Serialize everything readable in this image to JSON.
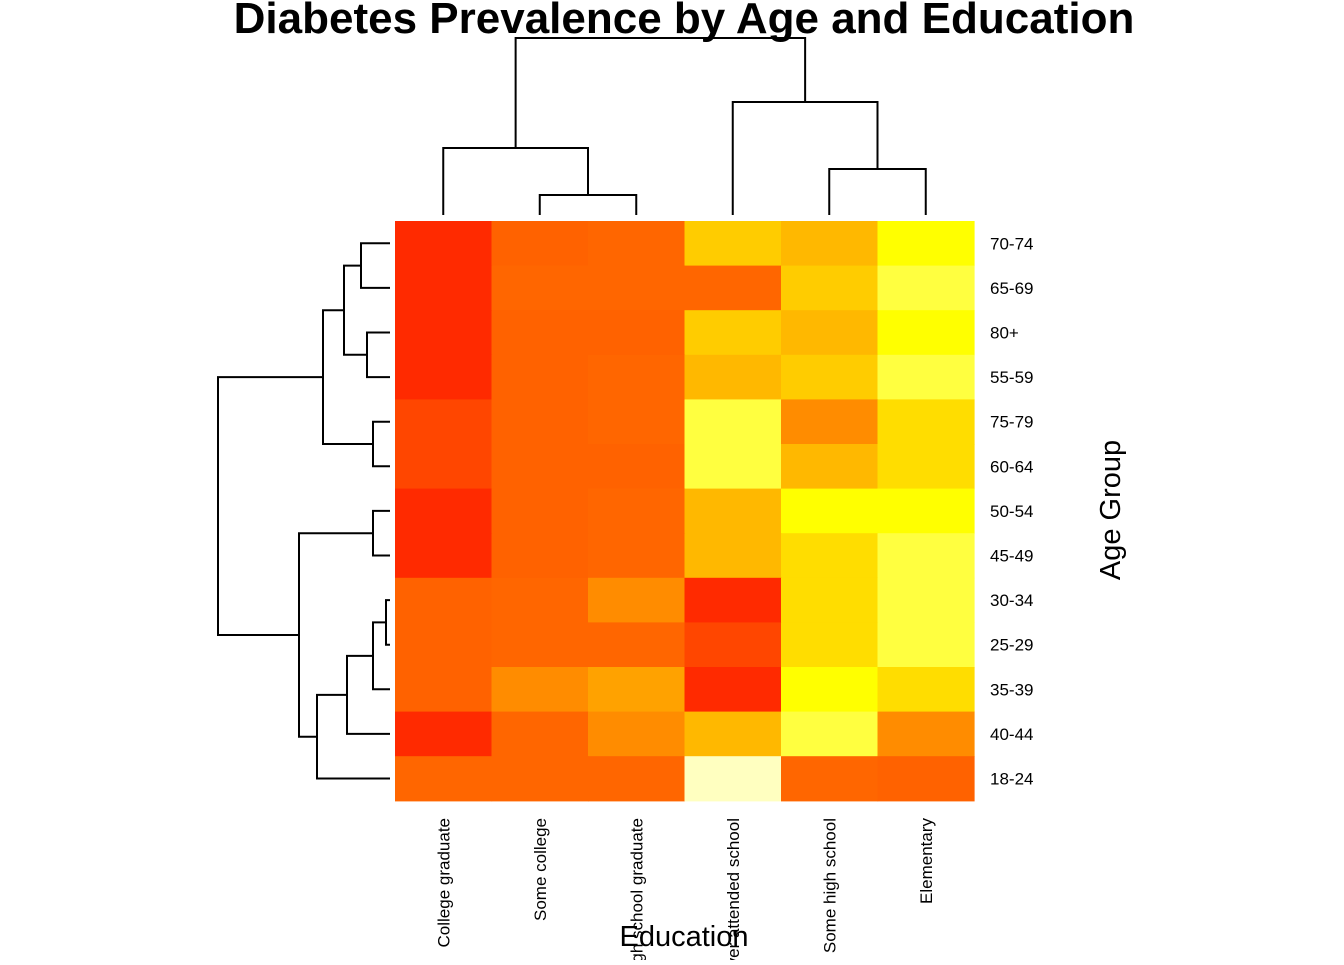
{
  "chart_data": {
    "type": "heatmap",
    "title": "Diabetes Prevalence by Age and Education",
    "xlabel": "Education",
    "ylabel": "Age Group",
    "columns": [
      "College graduate",
      "Some college",
      "High school graduate",
      "Never attended school",
      "Some high school",
      "Elementary"
    ],
    "rows": [
      "70-74",
      "65-69",
      "80+",
      "55-59",
      "75-79",
      "60-64",
      "50-54",
      "45-49",
      "30-34",
      "25-29",
      "35-39",
      "40-44",
      "18-24"
    ],
    "values": [
      [
        1,
        3,
        4,
        9,
        8,
        12
      ],
      [
        1,
        4,
        4,
        4,
        9,
        13
      ],
      [
        1,
        3,
        3,
        9,
        8,
        12
      ],
      [
        1,
        3,
        4,
        8,
        9,
        13
      ],
      [
        2,
        3,
        4,
        13,
        6,
        10
      ],
      [
        2,
        3,
        3,
        13,
        8,
        10
      ],
      [
        1,
        3,
        4,
        8,
        12,
        12
      ],
      [
        1,
        3,
        4,
        8,
        10,
        13
      ],
      [
        3,
        4,
        6,
        1,
        10,
        13
      ],
      [
        3,
        4,
        4,
        2,
        10,
        13
      ],
      [
        3,
        6,
        7,
        1,
        12,
        10
      ],
      [
        1,
        4,
        6,
        8,
        13,
        6
      ],
      [
        4,
        4,
        4,
        15,
        4,
        3
      ]
    ],
    "color_scale": {
      "name": "heat.colors",
      "low": "#FF0000",
      "high": "#FFFFC0",
      "levels": [
        "#FF0000",
        "#FF2A00",
        "#FF4600",
        "#FF6200",
        "#FF6600",
        "#FF7700",
        "#FF8C00",
        "#FFA200",
        "#FFB800",
        "#FFCC00",
        "#FFDD00",
        "#FFEA00",
        "#FFFF00",
        "#FFFF40",
        "#FFFF80",
        "#FFFFC0"
      ]
    },
    "legend": "none"
  }
}
